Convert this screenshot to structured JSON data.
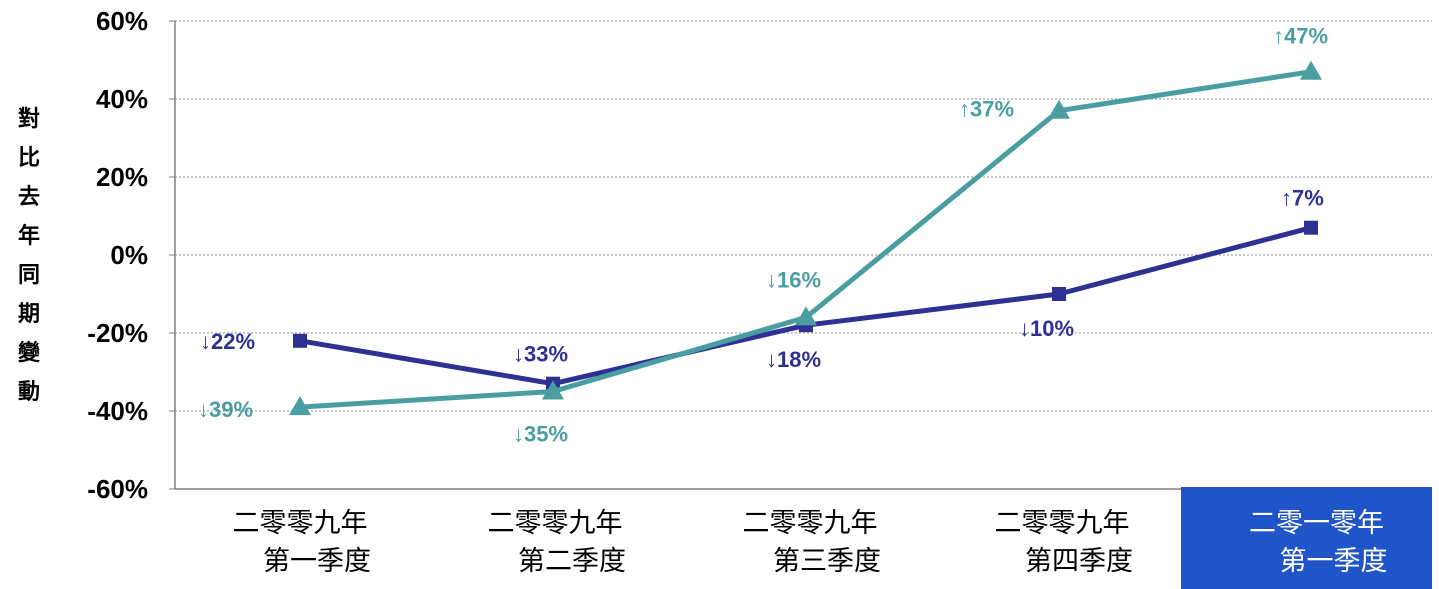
{
  "chart_data": {
    "type": "line",
    "ylabel": "對比去年同期變動",
    "ylim": [
      -60,
      60
    ],
    "yticks": [
      "60%",
      "40%",
      "20%",
      "0%",
      "-20%",
      "-40%",
      "-60%"
    ],
    "categories": [
      [
        "二零零九年",
        "第一季度"
      ],
      [
        "二零零九年",
        "第二季度"
      ],
      [
        "二零零九年",
        "第三季度"
      ],
      [
        "二零零九年",
        "第四季度"
      ],
      [
        "二零一零年",
        "第一季度"
      ]
    ],
    "highlight_category": 4,
    "series": [
      {
        "marker": "square",
        "color": "#2e3192",
        "values": [
          -22,
          -33,
          -18,
          -10,
          7
        ],
        "labels": [
          "↓22%",
          "↓33%",
          "↓18%",
          "↓10%",
          "↑7%"
        ]
      },
      {
        "marker": "triangle",
        "color": "#4a9ea1",
        "values": [
          -39,
          -35,
          -16,
          37,
          47
        ],
        "labels": [
          "↓39%",
          "↓35%",
          "↓16%",
          "↑37%",
          "↑47%"
        ]
      }
    ],
    "grid": true,
    "highlight_color": "#1f55c8"
  }
}
